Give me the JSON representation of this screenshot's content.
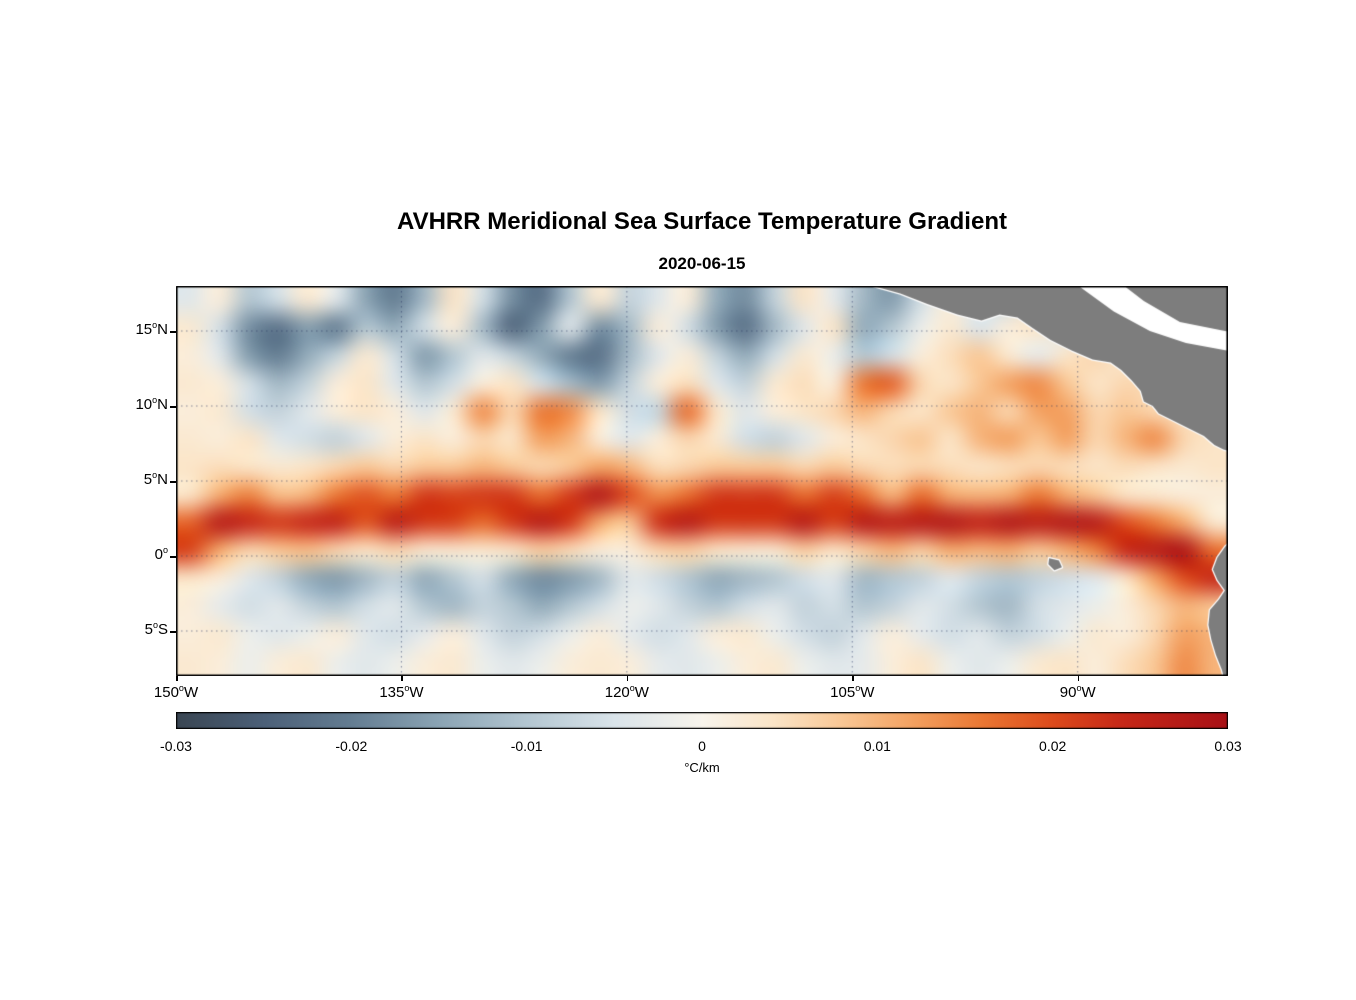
{
  "chart_data": {
    "type": "heatmap",
    "title": "AVHRR Meridional Sea Surface Temperature Gradient",
    "subtitle": "2020-06-15",
    "xlabel": "",
    "ylabel": "",
    "units": "°C/km",
    "lon_range": [
      -150,
      -80
    ],
    "lat_range": [
      -8,
      18
    ],
    "grid": "dotted",
    "grid_lons": [
      -135,
      -120,
      -105,
      -90
    ],
    "grid_lats": [
      15,
      10,
      5,
      0,
      -5
    ],
    "xticks": [
      {
        "label": "150",
        "hemi": "W",
        "lon": -150
      },
      {
        "label": "135",
        "hemi": "W",
        "lon": -135
      },
      {
        "label": "120",
        "hemi": "W",
        "lon": -120
      },
      {
        "label": "105",
        "hemi": "W",
        "lon": -105
      },
      {
        "label": "90",
        "hemi": "W",
        "lon": -90
      }
    ],
    "yticks": [
      {
        "label": "15",
        "hemi": "N",
        "lat": 15
      },
      {
        "label": "10",
        "hemi": "N",
        "lat": 10
      },
      {
        "label": "5",
        "hemi": "N",
        "lat": 5
      },
      {
        "label": "0",
        "hemi": "",
        "lat": 0
      },
      {
        "label": "5",
        "hemi": "S",
        "lat": -5
      }
    ],
    "colorbar": {
      "min": -0.03,
      "max": 0.03,
      "unit_label": "°C/km",
      "ticks": [
        {
          "label": "-0.03",
          "value": -0.03
        },
        {
          "label": "-0.02",
          "value": -0.02
        },
        {
          "label": "-0.01",
          "value": -0.01
        },
        {
          "label": "0",
          "value": 0
        },
        {
          "label": "0.01",
          "value": 0.01
        },
        {
          "label": "0.02",
          "value": 0.02
        },
        {
          "label": "0.03",
          "value": 0.03
        }
      ]
    },
    "colormap": [
      {
        "value": -0.03,
        "color": "#3a4653"
      },
      {
        "value": -0.025,
        "color": "#4c6078"
      },
      {
        "value": -0.02,
        "color": "#647d92"
      },
      {
        "value": -0.015,
        "color": "#8ba4b4"
      },
      {
        "value": -0.01,
        "color": "#b3c6d1"
      },
      {
        "value": -0.005,
        "color": "#dae4ea"
      },
      {
        "value": 0,
        "color": "#f8f4ec"
      },
      {
        "value": 0.004,
        "color": "#fbe5c8"
      },
      {
        "value": 0.008,
        "color": "#f9c795"
      },
      {
        "value": 0.012,
        "color": "#f3a161"
      },
      {
        "value": 0.016,
        "color": "#ea7733"
      },
      {
        "value": 0.02,
        "color": "#dd4b1c"
      },
      {
        "value": 0.024,
        "color": "#c62818"
      },
      {
        "value": 0.03,
        "color": "#a81016"
      }
    ],
    "land_color": "#7d7d7d",
    "coastline_color": "#ffffff",
    "lon": [
      -150,
      -148,
      -146,
      -144,
      -142,
      -140,
      -138,
      -136,
      -134,
      -132,
      -130,
      -128,
      -126,
      -124,
      -122,
      -120,
      -118,
      -116,
      -114,
      -112,
      -110,
      -108,
      -106,
      -104,
      -102,
      -100,
      -98,
      -96,
      -94,
      -92,
      -90,
      -88,
      -86,
      -84,
      -82,
      -80
    ],
    "lat": [
      18,
      16,
      14,
      12,
      10,
      8,
      6,
      4,
      2,
      0,
      -2,
      -4,
      -6,
      -8
    ],
    "values": [
      [
        -0.004,
        0.002,
        -0.01,
        -0.006,
        0.003,
        -0.004,
        -0.015,
        -0.02,
        -0.012,
        0.004,
        -0.006,
        -0.018,
        -0.022,
        -0.01,
        0.003,
        -0.008,
        -0.004,
        0.002,
        -0.014,
        -0.018,
        -0.008,
        0.004,
        -0.003,
        -0.012,
        -0.016,
        -0.006,
        0.002,
        -0.004,
        -0.008,
        0.003,
        -0.002,
        -0.006,
        0.002,
        0.004,
        -0.003,
        0.002
      ],
      [
        0.003,
        -0.006,
        -0.018,
        -0.022,
        -0.016,
        -0.02,
        -0.01,
        -0.014,
        -0.006,
        0.002,
        -0.012,
        -0.024,
        -0.016,
        -0.004,
        -0.018,
        -0.012,
        0.002,
        -0.006,
        -0.016,
        -0.022,
        -0.012,
        -0.004,
        0.004,
        -0.014,
        -0.01,
        -0.002,
        0.003,
        -0.005,
        0.002,
        0.004,
        -0.004,
        0.002,
        0.005,
        0.003,
        0.002,
        0.004
      ],
      [
        0.002,
        -0.004,
        -0.016,
        -0.02,
        -0.014,
        -0.008,
        0.003,
        -0.006,
        -0.016,
        -0.01,
        -0.004,
        -0.008,
        -0.014,
        -0.02,
        -0.022,
        -0.012,
        -0.004,
        0.002,
        -0.008,
        -0.014,
        -0.006,
        0.003,
        -0.002,
        -0.01,
        -0.006,
        0.002,
        0.005,
        0.008,
        0.003,
        -0.003,
        0.004,
        0.006,
        0.003,
        0.005,
        0.002,
        0.003
      ],
      [
        0.003,
        0.002,
        -0.006,
        -0.012,
        -0.008,
        0.002,
        0.004,
        -0.004,
        -0.01,
        -0.006,
        0.002,
        0.004,
        -0.006,
        -0.012,
        -0.016,
        -0.008,
        0.002,
        0.005,
        -0.004,
        -0.008,
        0.003,
        0.005,
        0.002,
        0.016,
        0.018,
        0.006,
        0.004,
        0.008,
        0.012,
        0.014,
        0.008,
        0.004,
        0.006,
        0.005,
        0.004,
        0.003
      ],
      [
        0.002,
        0.003,
        -0.006,
        -0.008,
        -0.004,
        0.002,
        0.004,
        0.002,
        -0.004,
        0.003,
        0.014,
        0.006,
        0.016,
        0.014,
        0.004,
        -0.006,
        -0.008,
        0.017,
        0.004,
        -0.004,
        0.002,
        0.004,
        0.006,
        0.01,
        0.006,
        0.004,
        0.008,
        0.01,
        0.006,
        0.012,
        0.012,
        0.006,
        0.008,
        0.006,
        0.004,
        0.005
      ],
      [
        0.003,
        0.002,
        0.004,
        -0.004,
        -0.006,
        -0.008,
        -0.004,
        0.002,
        0.004,
        0.002,
        0.006,
        0.004,
        0.012,
        0.01,
        0.002,
        -0.004,
        0.002,
        0.006,
        0.003,
        -0.006,
        -0.008,
        -0.004,
        0.002,
        0.004,
        0.006,
        0.008,
        0.004,
        0.01,
        0.012,
        0.008,
        0.012,
        0.006,
        0.01,
        0.014,
        0.006,
        0.004
      ],
      [
        0.004,
        0.005,
        0.004,
        0.003,
        0.004,
        0.006,
        0.008,
        0.006,
        0.008,
        0.008,
        0.01,
        0.008,
        0.006,
        0.008,
        0.012,
        0.01,
        0.005,
        0.006,
        0.008,
        0.008,
        0.008,
        0.006,
        0.008,
        0.006,
        0.005,
        0.006,
        0.005,
        0.004,
        0.005,
        0.006,
        0.005,
        0.004,
        0.005,
        0.004,
        0.003,
        0.004
      ],
      [
        0.004,
        0.011,
        0.015,
        0.009,
        0.01,
        0.016,
        0.019,
        0.016,
        0.022,
        0.021,
        0.022,
        0.022,
        0.017,
        0.022,
        0.028,
        0.02,
        0.014,
        0.017,
        0.022,
        0.022,
        0.022,
        0.017,
        0.021,
        0.017,
        0.01,
        0.017,
        0.011,
        0.01,
        0.011,
        0.016,
        0.011,
        0.008,
        0.004,
        0.003,
        0.002,
        0.002
      ],
      [
        0.018,
        0.027,
        0.024,
        0.022,
        0.024,
        0.025,
        0.019,
        0.026,
        0.022,
        0.021,
        0.017,
        0.022,
        0.027,
        0.022,
        0.011,
        0.008,
        0.023,
        0.027,
        0.022,
        0.022,
        0.022,
        0.027,
        0.021,
        0.027,
        0.026,
        0.027,
        0.028,
        0.025,
        0.028,
        0.026,
        0.028,
        0.027,
        0.02,
        0.016,
        0.011,
        0.003
      ],
      [
        0.021,
        0.011,
        0.006,
        0.008,
        0.009,
        0.006,
        0.004,
        0.006,
        0.003,
        0.003,
        0.003,
        0.004,
        0.007,
        0.005,
        0.002,
        0.002,
        0.006,
        0.007,
        0.004,
        0.003,
        0.003,
        0.007,
        0.004,
        0.007,
        0.01,
        0.007,
        0.011,
        0.01,
        0.011,
        0.008,
        0.011,
        0.015,
        0.024,
        0.027,
        0.029,
        0.017
      ],
      [
        0.004,
        0.002,
        -0.004,
        -0.008,
        -0.014,
        -0.016,
        -0.012,
        -0.008,
        -0.014,
        -0.01,
        -0.006,
        -0.014,
        -0.018,
        -0.016,
        -0.012,
        -0.004,
        -0.006,
        -0.01,
        -0.014,
        -0.012,
        -0.01,
        -0.006,
        -0.004,
        -0.012,
        -0.01,
        -0.008,
        -0.004,
        -0.008,
        -0.01,
        -0.008,
        -0.006,
        -0.004,
        0.004,
        0.012,
        0.02,
        0.024
      ],
      [
        0.002,
        -0.003,
        -0.006,
        -0.004,
        -0.008,
        -0.01,
        -0.006,
        -0.004,
        -0.01,
        -0.012,
        -0.008,
        -0.01,
        -0.014,
        -0.01,
        -0.006,
        -0.002,
        -0.004,
        -0.008,
        -0.01,
        -0.006,
        -0.004,
        -0.008,
        -0.006,
        -0.01,
        -0.008,
        -0.004,
        -0.006,
        -0.01,
        -0.012,
        -0.006,
        -0.004,
        -0.002,
        0.002,
        0.006,
        0.01,
        0.008
      ],
      [
        0.002,
        0.003,
        -0.002,
        -0.004,
        -0.002,
        0.002,
        -0.004,
        -0.006,
        -0.003,
        0.002,
        -0.004,
        -0.008,
        -0.006,
        -0.002,
        0.002,
        -0.003,
        -0.006,
        -0.004,
        0.002,
        0.003,
        -0.002,
        -0.006,
        -0.008,
        -0.004,
        0.002,
        -0.003,
        -0.006,
        -0.004,
        -0.008,
        -0.006,
        -0.002,
        0.003,
        0.002,
        0.006,
        0.012,
        0.01
      ],
      [
        0.003,
        0.002,
        -0.002,
        0.002,
        0.003,
        -0.002,
        -0.004,
        -0.002,
        0.002,
        0.003,
        -0.002,
        -0.004,
        -0.002,
        0.002,
        0.003,
        0.002,
        -0.003,
        -0.004,
        -0.002,
        0.002,
        0.003,
        -0.002,
        -0.004,
        -0.003,
        0.002,
        0.004,
        -0.002,
        -0.004,
        -0.002,
        0.003,
        0.004,
        0.002,
        0.005,
        0.008,
        0.014,
        0.01
      ]
    ],
    "land": [
      {
        "name": "central-america",
        "fill": "#7d7d7d",
        "stroke": "#ffffff",
        "points": [
          [
            -104,
            18.6
          ],
          [
            -103.6,
            18.0
          ],
          [
            -101.8,
            17.5
          ],
          [
            -100,
            16.8
          ],
          [
            -98,
            16.1
          ],
          [
            -96.4,
            15.7
          ],
          [
            -95.2,
            16.1
          ],
          [
            -94,
            15.9
          ],
          [
            -93,
            15.2
          ],
          [
            -91.8,
            14.4
          ],
          [
            -90.4,
            13.7
          ],
          [
            -89,
            13.1
          ],
          [
            -87.8,
            12.9
          ],
          [
            -87.1,
            12.4
          ],
          [
            -86.4,
            11.7
          ],
          [
            -85.8,
            11.0
          ],
          [
            -85.6,
            10.3
          ],
          [
            -85.0,
            10.0
          ],
          [
            -84.6,
            9.5
          ],
          [
            -83.6,
            9.0
          ],
          [
            -82.6,
            8.5
          ],
          [
            -81.6,
            8.0
          ],
          [
            -80.9,
            7.4
          ],
          [
            -80.3,
            7.1
          ],
          [
            -79.6,
            6.9
          ],
          [
            -79.6,
            19.2
          ],
          [
            -104,
            19.2
          ]
        ]
      },
      {
        "name": "caribbean-mask",
        "fill": "#ffffff",
        "stroke": "",
        "points": [
          [
            -90.8,
            19.0
          ],
          [
            -88.2,
            19.0
          ],
          [
            -85.6,
            17.0
          ],
          [
            -83.2,
            15.6
          ],
          [
            -80.2,
            15.0
          ],
          [
            -79.6,
            14.9
          ],
          [
            -79.6,
            13.6
          ],
          [
            -82.8,
            14.2
          ],
          [
            -85.2,
            15.0
          ],
          [
            -87.6,
            16.3
          ],
          [
            -89.8,
            17.9
          ]
        ]
      },
      {
        "name": "south-america",
        "fill": "#7d7d7d",
        "stroke": "#ffffff",
        "points": [
          [
            -79.6,
            1.2
          ],
          [
            -80.2,
            0.6
          ],
          [
            -80.7,
            -0.1
          ],
          [
            -81.0,
            -0.9
          ],
          [
            -80.7,
            -1.6
          ],
          [
            -80.2,
            -2.3
          ],
          [
            -80.6,
            -2.9
          ],
          [
            -81.2,
            -3.6
          ],
          [
            -81.3,
            -4.6
          ],
          [
            -81.1,
            -5.6
          ],
          [
            -80.8,
            -6.6
          ],
          [
            -80.4,
            -7.6
          ],
          [
            -80.2,
            -8.4
          ],
          [
            -79.6,
            -8.4
          ]
        ]
      },
      {
        "name": "galapagos-islands",
        "fill": "#7d7d7d",
        "stroke": "#ffffff",
        "points": [
          [
            -91.9,
            -0.15
          ],
          [
            -91.25,
            -0.3
          ],
          [
            -91.05,
            -0.75
          ],
          [
            -91.55,
            -0.95
          ],
          [
            -91.95,
            -0.55
          ]
        ]
      }
    ]
  }
}
